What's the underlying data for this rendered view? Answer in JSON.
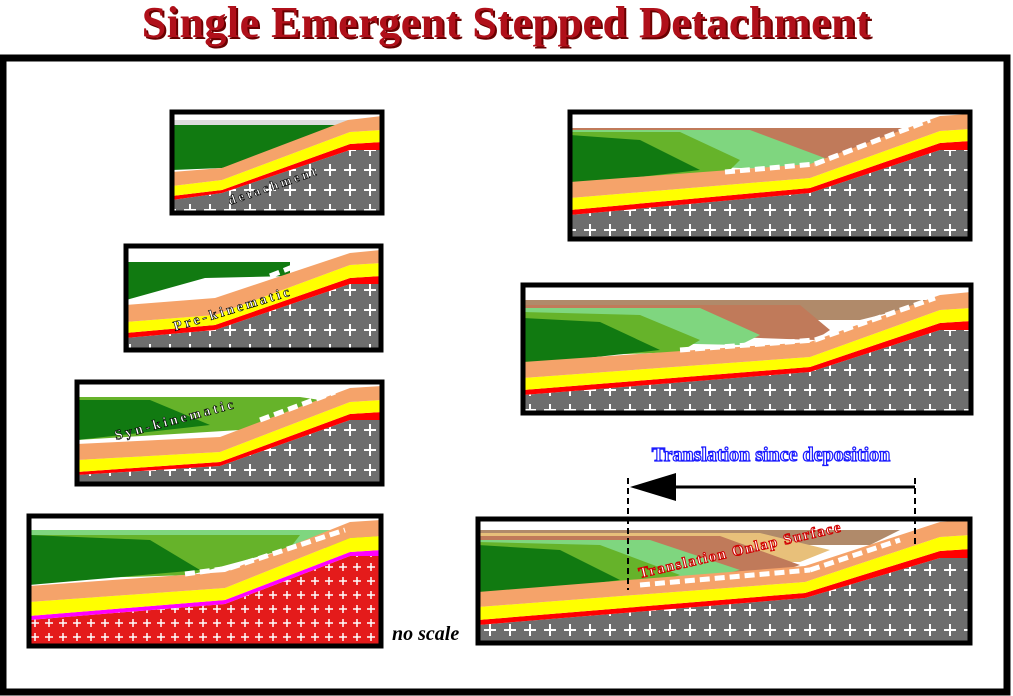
{
  "title": "Single Emergent Stepped Detachment",
  "labels": {
    "detachment": "detachment",
    "pre_kinematic": "Pre-kinematic",
    "syn_kinematic": "Syn-kinematic",
    "translation_since_deposition": "Translation since deposition",
    "translation_onlap_surface": "Translation Onlap Surface",
    "no_scale": "no scale"
  },
  "colors": {
    "title": "#b0101a",
    "basement": "#6e6e6e",
    "basement_red": "#e41b1b",
    "orange_layer": "#f5a36a",
    "yellow_layer": "#ffff00",
    "red_line": "#ff0000",
    "magenta_line": "#ff00ff",
    "dark_green": "#117a11",
    "mid_green": "#66b32a",
    "light_green": "#7fd67f",
    "brown": "#c07a5a",
    "tan": "#e8c07a",
    "arrow_label": "#1a1aff"
  }
}
